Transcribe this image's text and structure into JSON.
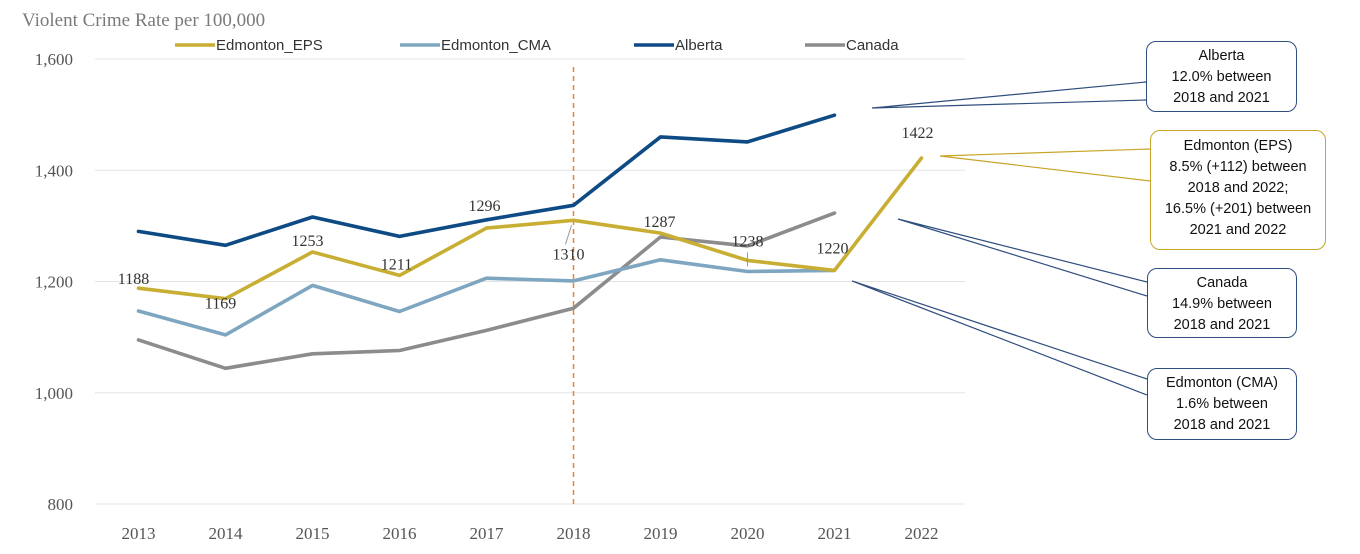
{
  "chart_data": {
    "type": "line",
    "title": "Violent Crime Rate per 100,000",
    "categories": [
      "2013",
      "2014",
      "2015",
      "2016",
      "2017",
      "2018",
      "2019",
      "2020",
      "2021",
      "2022"
    ],
    "ylim": [
      800,
      1600
    ],
    "yticks": [
      800,
      1000,
      1200,
      1400,
      1600
    ],
    "ytick_labels": [
      "800",
      "1,000",
      "1,200",
      "1,400",
      "1,600"
    ],
    "grid": true,
    "legend_position": "top",
    "reference_line": {
      "x": "2018",
      "style": "dashed",
      "color": "#e0893e"
    },
    "series": [
      {
        "name": "Edmonton_EPS",
        "color": "#c8ae32",
        "values": [
          1188,
          1169,
          1253,
          1211,
          1296,
          1310,
          1287,
          1238,
          1220,
          1422
        ],
        "data_labels": [
          "1188",
          "1169",
          "1253",
          "1211",
          "1296",
          "1310",
          "1287",
          "1238",
          "1220",
          "1422"
        ]
      },
      {
        "name": "Edmonton_CMA",
        "color": "#7ea6c1",
        "values": [
          1147,
          1104,
          1193,
          1146,
          1206,
          1201,
          1239,
          1218,
          1220,
          null
        ]
      },
      {
        "name": "Alberta",
        "color": "#0e4a84",
        "values": [
          1290,
          1265,
          1316,
          1281,
          1311,
          1337,
          1460,
          1451,
          1499,
          null
        ]
      },
      {
        "name": "Canada",
        "color": "#8c8c8c",
        "values": [
          1095,
          1044,
          1070,
          1076,
          1112,
          1152,
          1280,
          1264,
          1323,
          null
        ]
      }
    ],
    "annotations": [
      {
        "id": "alberta",
        "lines": [
          "Alberta",
          "12.0% between",
          "2018 and 2021"
        ]
      },
      {
        "id": "eps",
        "lines": [
          "Edmonton (EPS)",
          "8.5%  (+112) between",
          "2018 and 2022;",
          "16.5% (+201) between",
          "2021 and 2022"
        ]
      },
      {
        "id": "canada",
        "lines": [
          "Canada",
          "14.9% between",
          "2018 and 2021"
        ]
      },
      {
        "id": "cma",
        "lines": [
          "Edmonton (CMA)",
          "1.6% between",
          "2018 and 2021"
        ]
      }
    ]
  }
}
